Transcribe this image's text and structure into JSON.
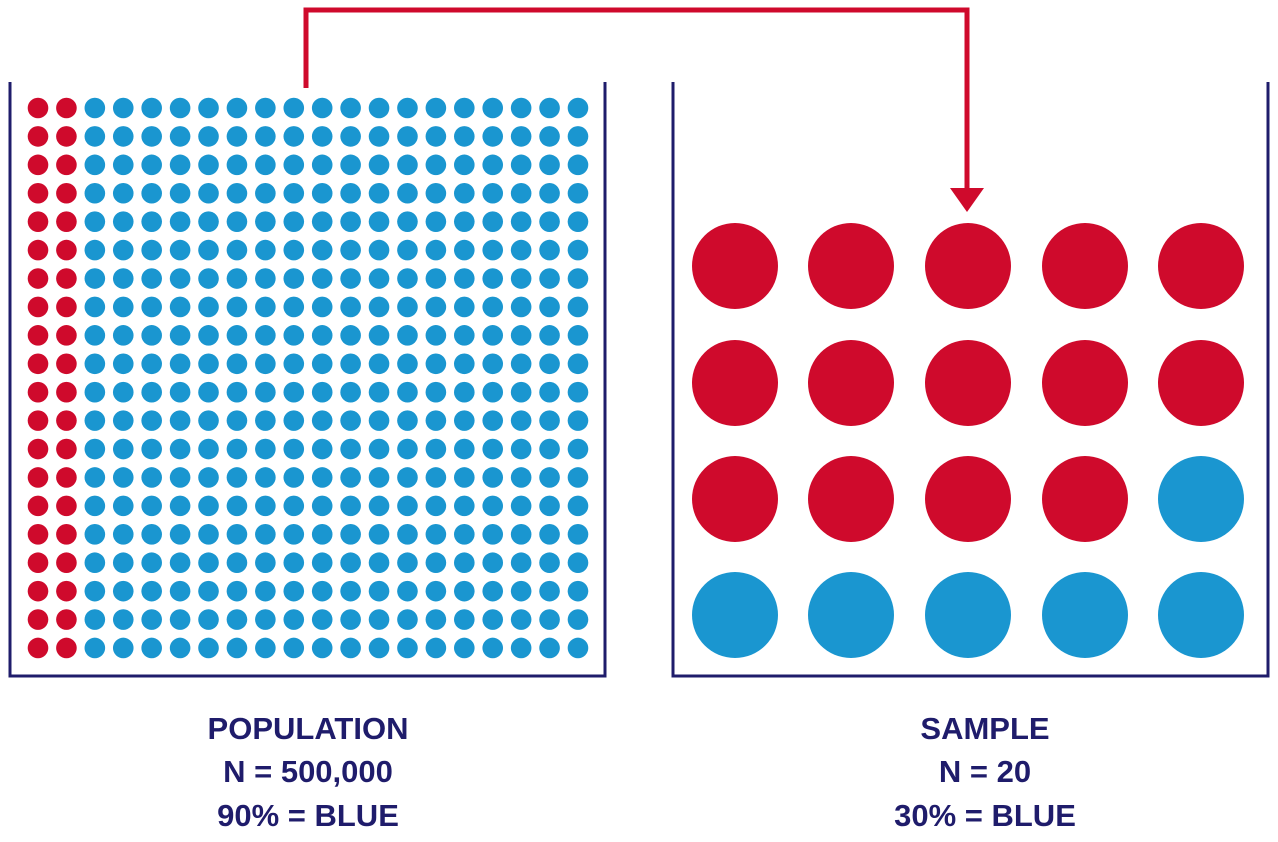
{
  "population": {
    "title": "POPULATION",
    "size": "N = 500,000",
    "share": "90% = BLUE"
  },
  "sample": {
    "title": "SAMPLE",
    "size": "N = 20",
    "share": "30% = BLUE"
  }
}
